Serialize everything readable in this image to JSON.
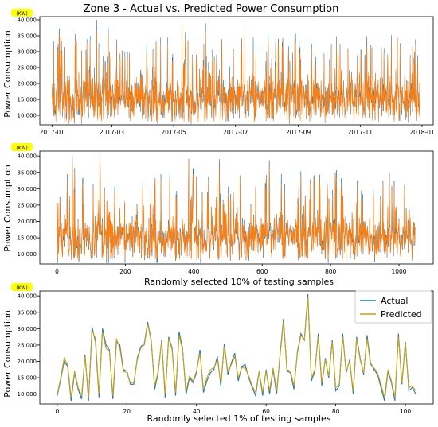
{
  "figure": {
    "title": "Zone 3 - Actual vs. Predicted Power Consumption",
    "unit_badge": "(KW)",
    "colors": {
      "actual": "#1f77b4",
      "predicted_top": "#ff7f0e",
      "predicted_bottom": "#c8a415",
      "badge": "#ffff00"
    }
  },
  "chart_data": [
    {
      "type": "line",
      "title": "Zone 3 - Actual vs. Predicted Power Consumption",
      "xlabel": "",
      "ylabel": "Power Consumption",
      "unit": "(KW)",
      "x_range": [
        "2016-12-20",
        "2018-01-12"
      ],
      "ylim": [
        7000,
        41000
      ],
      "x_ticks": [
        "2017-01",
        "2017-03",
        "2017-05",
        "2017-07",
        "2017-09",
        "2017-11",
        "2018-01"
      ],
      "y_ticks": [
        10000,
        15000,
        20000,
        25000,
        30000,
        35000,
        40000
      ],
      "y_tick_labels": [
        "10,000",
        "15,000",
        "20,000",
        "25,000",
        "30,000",
        "35,000",
        "40,000"
      ],
      "sampling": "10-minute intervals, 2017-01-01 to 2017-12-30 (dense)",
      "series": [
        {
          "name": "Actual",
          "color": "#1f77b4",
          "range": [
            6800,
            40500
          ]
        },
        {
          "name": "Predicted",
          "color": "#ff7f0e",
          "range": [
            8000,
            38500
          ]
        }
      ],
      "grid": false,
      "legend": "none"
    },
    {
      "type": "line",
      "xlabel": "Randomly selected 10% of testing samples",
      "ylabel": "Power Consumption",
      "unit": "(KW)",
      "xlim": [
        -50,
        1100
      ],
      "ylim": [
        7000,
        41500
      ],
      "x_ticks": [
        0,
        200,
        400,
        600,
        800,
        1000
      ],
      "y_ticks": [
        10000,
        15000,
        20000,
        25000,
        30000,
        35000,
        40000
      ],
      "y_tick_labels": [
        "10,000",
        "15,000",
        "20,000",
        "25,000",
        "30,000",
        "35,000",
        "40,000"
      ],
      "n_samples": 1048,
      "series": [
        {
          "name": "Actual",
          "color": "#1f77b4"
        },
        {
          "name": "Predicted",
          "color": "#ff7f0e"
        }
      ],
      "grid": false,
      "legend": "none"
    },
    {
      "type": "line",
      "xlabel": "Randomly selected 1% of testing samples",
      "ylabel": "Power Consumption",
      "unit": "(KW)",
      "xlim": [
        -5,
        108
      ],
      "ylim": [
        7000,
        41500
      ],
      "x_ticks": [
        0,
        20,
        40,
        60,
        80,
        100
      ],
      "y_ticks": [
        10000,
        15000,
        20000,
        25000,
        30000,
        35000,
        40000
      ],
      "y_tick_labels": [
        "10,000",
        "15,000",
        "20,000",
        "25,000",
        "30,000",
        "35,000",
        "40,000"
      ],
      "x": [
        0,
        1,
        2,
        3,
        4,
        5,
        6,
        7,
        8,
        9,
        10,
        11,
        12,
        13,
        14,
        15,
        16,
        17,
        18,
        19,
        20,
        21,
        22,
        23,
        24,
        25,
        26,
        27,
        28,
        29,
        30,
        31,
        32,
        33,
        34,
        35,
        36,
        37,
        38,
        39,
        40,
        41,
        42,
        43,
        44,
        45,
        46,
        47,
        48,
        49,
        50,
        51,
        52,
        53,
        54,
        55,
        56,
        57,
        58,
        59,
        60,
        61,
        62,
        63,
        64,
        65,
        66,
        67,
        68,
        69,
        70,
        71,
        72,
        73,
        74,
        75,
        76,
        77,
        78,
        79,
        80,
        81,
        82,
        83,
        84,
        85,
        86,
        87,
        88,
        89,
        90,
        91,
        92,
        93,
        94,
        95,
        96,
        97,
        98,
        99,
        100,
        101,
        102,
        103
      ],
      "series": [
        {
          "name": "Actual",
          "color": "#1f77b4",
          "values": [
            9500,
            14500,
            20000,
            18500,
            8000,
            16500,
            11500,
            8500,
            22000,
            8000,
            30500,
            26000,
            9000,
            30000,
            25000,
            23500,
            8500,
            26000,
            25000,
            17500,
            17000,
            13000,
            13000,
            21000,
            24500,
            25500,
            32000,
            26500,
            11500,
            16500,
            26500,
            9000,
            27500,
            24000,
            9500,
            29000,
            24000,
            10000,
            15000,
            13500,
            16500,
            23500,
            10500,
            14000,
            16500,
            17500,
            21500,
            12500,
            25500,
            16000,
            19500,
            22500,
            14000,
            18500,
            19000,
            15000,
            12000,
            9500,
            17000,
            9500,
            17500,
            10000,
            17500,
            10000,
            22000,
            33000,
            17000,
            16500,
            11500,
            23000,
            28500,
            26500,
            40500,
            14000,
            17000,
            28500,
            12500,
            21000,
            15000,
            26500,
            11000,
            12500,
            28500,
            16500,
            20500,
            10000,
            27500,
            21000,
            16000,
            28000,
            19500,
            17500,
            16000,
            12000,
            8000,
            17000,
            13500,
            8000,
            28500,
            13000,
            26000,
            11000,
            12000,
            10000
          ]
        },
        {
          "name": "Predicted",
          "color": "#c8a415",
          "values": [
            10000,
            15000,
            21000,
            19000,
            9000,
            17000,
            12000,
            9500,
            21500,
            9000,
            29500,
            27000,
            10000,
            29000,
            24000,
            23000,
            9500,
            27000,
            24000,
            17000,
            16500,
            13500,
            13500,
            20500,
            24000,
            25000,
            31500,
            26000,
            12500,
            17000,
            26000,
            10000,
            27000,
            23500,
            10500,
            28000,
            23500,
            11000,
            15500,
            14000,
            17000,
            22500,
            11500,
            15000,
            17500,
            18000,
            20500,
            13500,
            24500,
            17000,
            19000,
            21500,
            15000,
            18000,
            18000,
            15500,
            12500,
            10500,
            17000,
            10500,
            17000,
            11000,
            18000,
            11000,
            21500,
            32000,
            17500,
            17000,
            12500,
            22500,
            28000,
            26500,
            39500,
            15000,
            17500,
            27500,
            13500,
            20500,
            15500,
            26000,
            12000,
            13000,
            27500,
            17000,
            20000,
            11000,
            27000,
            20500,
            16500,
            27000,
            19000,
            18000,
            16500,
            13000,
            9000,
            17500,
            14000,
            9000,
            27500,
            13500,
            25500,
            12000,
            12500,
            11000
          ]
        }
      ],
      "grid": false,
      "legend": "top-right",
      "legend_entries": [
        "Actual",
        "Predicted"
      ]
    }
  ]
}
